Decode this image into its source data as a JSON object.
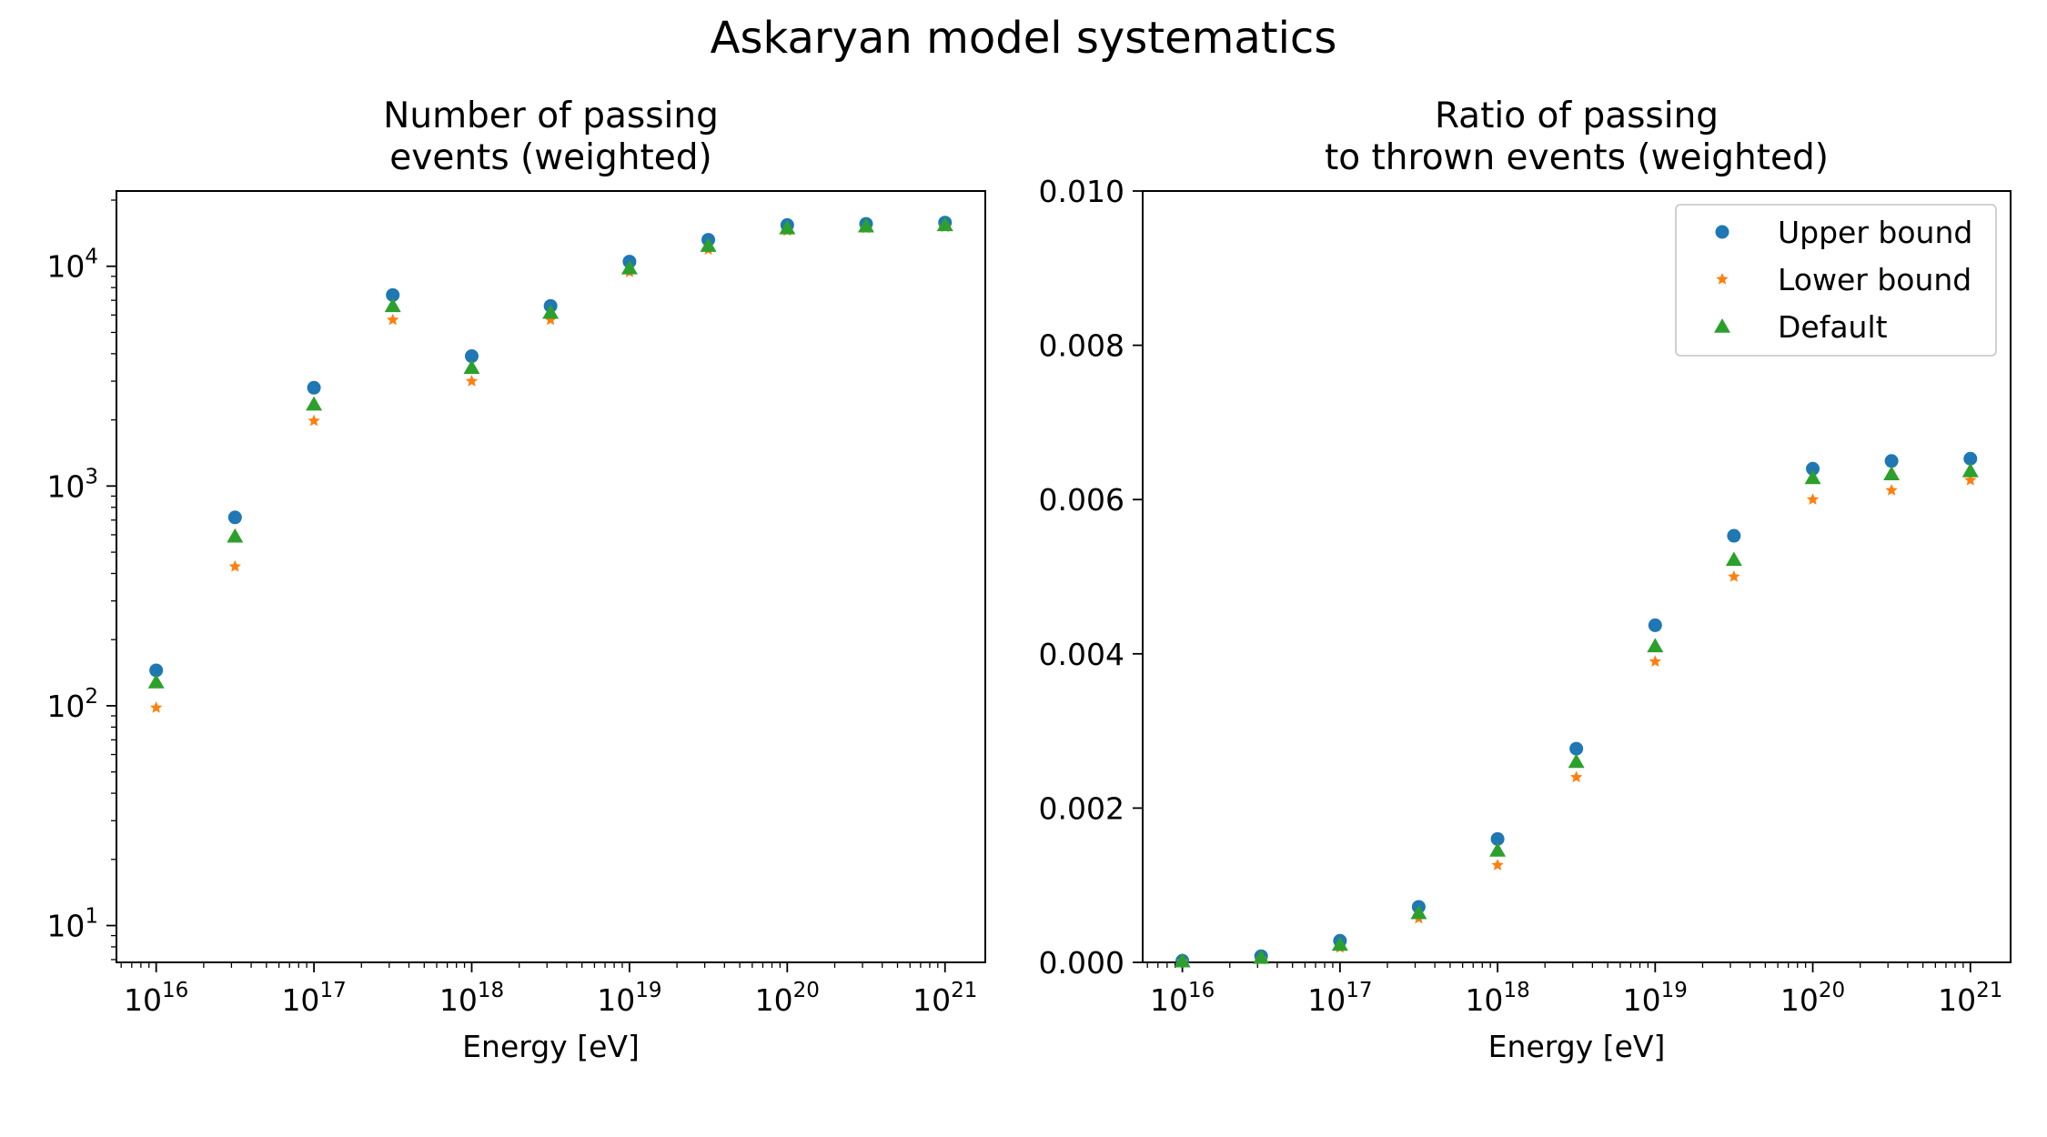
{
  "figure": {
    "title": "Askaryan model systematics"
  },
  "colors": {
    "upper": "#1f77b4",
    "lower": "#ff7f0e",
    "default": "#2ca02c",
    "axis": "#000000",
    "legend_edge": "#cccccc"
  },
  "chart_data": [
    {
      "type": "scatter",
      "title": "Number of passing\nevents (weighted)",
      "xlabel": "Energy [eV]",
      "ylabel": "",
      "xscale": "log",
      "yscale": "log",
      "xlim": [
        5600000000000000.0,
        1.8e+21
      ],
      "ylim": [
        6.8,
        22000
      ],
      "x_ticks": [
        {
          "value": 1e+16,
          "base": "10",
          "exp": "16"
        },
        {
          "value": 1e+17,
          "base": "10",
          "exp": "17"
        },
        {
          "value": 1e+18,
          "base": "10",
          "exp": "18"
        },
        {
          "value": 1e+19,
          "base": "10",
          "exp": "19"
        },
        {
          "value": 1e+20,
          "base": "10",
          "exp": "20"
        },
        {
          "value": 1e+21,
          "base": "10",
          "exp": "21"
        }
      ],
      "y_ticks": [
        {
          "value": 10,
          "base": "10",
          "exp": "1"
        },
        {
          "value": 100,
          "base": "10",
          "exp": "2"
        },
        {
          "value": 1000,
          "base": "10",
          "exp": "3"
        },
        {
          "value": 10000,
          "base": "10",
          "exp": "4"
        }
      ],
      "x": [
        1e+16,
        3.16e+16,
        1e+17,
        3.16e+17,
        1e+18,
        3.16e+18,
        1e+19,
        3.16e+19,
        1e+20,
        3.16e+20,
        1e+21
      ],
      "series": [
        {
          "name": "Upper bound",
          "marker": "circle",
          "color_key": "upper",
          "values": [
            145,
            720,
            2800,
            7400,
            3900,
            6600,
            10500,
            13200,
            15400,
            15600,
            15800
          ]
        },
        {
          "name": "Lower bound",
          "marker": "star",
          "color_key": "lower",
          "values": [
            98,
            430,
            1980,
            5700,
            3000,
            5700,
            9400,
            11900,
            14500,
            14900,
            15100
          ]
        },
        {
          "name": "Default",
          "marker": "triangle",
          "color_key": "default",
          "values": [
            128,
            590,
            2350,
            6600,
            3450,
            6150,
            9800,
            12400,
            14900,
            15200,
            15400
          ]
        }
      ],
      "legend": false
    },
    {
      "type": "scatter",
      "title": "Ratio of passing\nto thrown events (weighted)",
      "xlabel": "Energy [eV]",
      "ylabel": "",
      "xscale": "log",
      "yscale": "linear",
      "xlim": [
        5600000000000000.0,
        1.8e+21
      ],
      "ylim": [
        0,
        0.01
      ],
      "x_ticks": [
        {
          "value": 1e+16,
          "base": "10",
          "exp": "16"
        },
        {
          "value": 1e+17,
          "base": "10",
          "exp": "17"
        },
        {
          "value": 1e+18,
          "base": "10",
          "exp": "18"
        },
        {
          "value": 1e+19,
          "base": "10",
          "exp": "19"
        },
        {
          "value": 1e+20,
          "base": "10",
          "exp": "20"
        },
        {
          "value": 1e+21,
          "base": "10",
          "exp": "21"
        }
      ],
      "y_ticks": [
        {
          "value": 0.0,
          "label": "0.000"
        },
        {
          "value": 0.002,
          "label": "0.002"
        },
        {
          "value": 0.004,
          "label": "0.004"
        },
        {
          "value": 0.006,
          "label": "0.006"
        },
        {
          "value": 0.008,
          "label": "0.008"
        },
        {
          "value": 0.01,
          "label": "0.010"
        }
      ],
      "x": [
        1e+16,
        3.16e+16,
        1e+17,
        3.16e+17,
        1e+18,
        3.16e+18,
        1e+19,
        3.16e+19,
        1e+20,
        3.16e+20,
        1e+21
      ],
      "series": [
        {
          "name": "Upper bound",
          "marker": "circle",
          "color_key": "upper",
          "values": [
            2e-05,
            8e-05,
            0.00028,
            0.00072,
            0.0016,
            0.00277,
            0.00437,
            0.00553,
            0.0064,
            0.0065,
            0.00653
          ]
        },
        {
          "name": "Lower bound",
          "marker": "star",
          "color_key": "lower",
          "values": [
            1e-05,
            4e-05,
            0.00019,
            0.00057,
            0.00126,
            0.0024,
            0.0039,
            0.005,
            0.006,
            0.00612,
            0.00625
          ]
        },
        {
          "name": "Default",
          "marker": "triangle",
          "color_key": "default",
          "values": [
            1.5e-05,
            6e-05,
            0.00023,
            0.00064,
            0.00145,
            0.0026,
            0.0041,
            0.00522,
            0.00628,
            0.00633,
            0.00637
          ]
        }
      ],
      "legend": true,
      "legend_position": "upper right"
    }
  ]
}
